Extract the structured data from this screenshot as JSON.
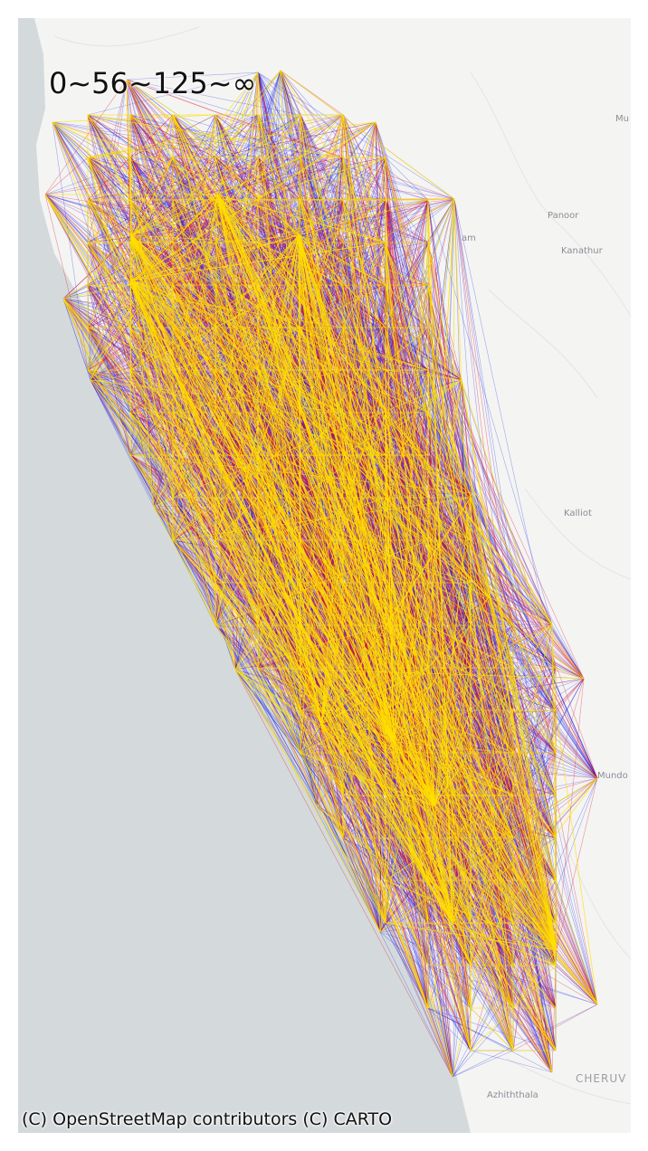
{
  "legend": {
    "label": "0~56~125~∞"
  },
  "attribution": "(C) OpenStreetMap contributors (C) CARTO",
  "places": {
    "panoor": "Panoor",
    "kanathur": "Kanathur",
    "kalliot": "Kalliot",
    "mundo": "Mundo",
    "cheruv": "CHERUV",
    "azhiththala": "Azhiththala",
    "mu": "Mu",
    "am": "am"
  },
  "colors": {
    "sea": "#d4dadc",
    "land": "#f4f4f3",
    "tier_low": "#0a14e6",
    "tier_mid": "#e0102a",
    "tier_high": "#ffe000"
  },
  "flow_tiers": [
    {
      "range": "0~56",
      "color": "#0a14e6"
    },
    {
      "range": "56~125",
      "color": "#e0102a"
    },
    {
      "range": "125~∞",
      "color": "#ffe000"
    }
  ]
}
